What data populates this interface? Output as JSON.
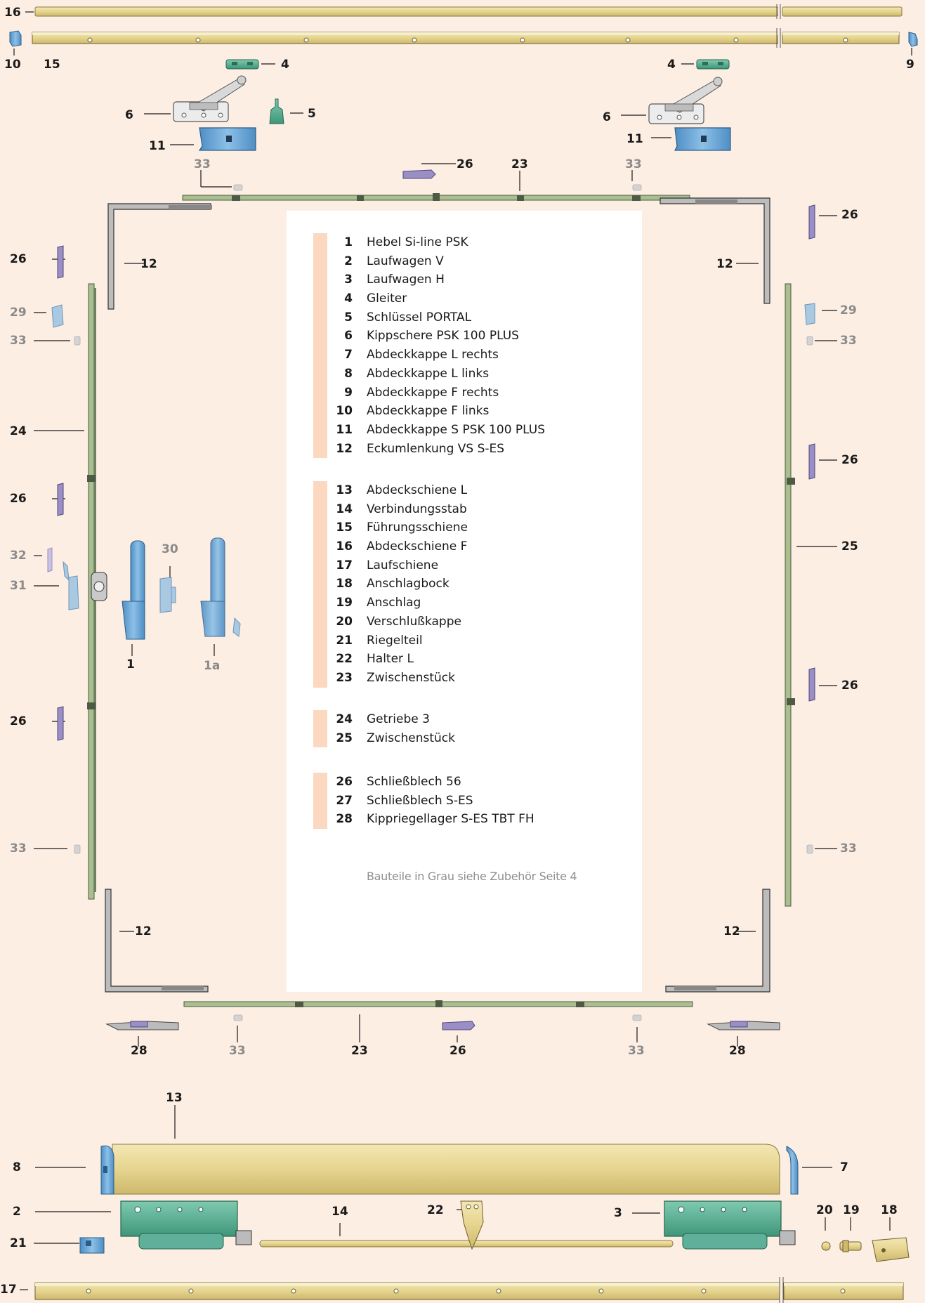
{
  "legend": {
    "groups": [
      {
        "items": [
          {
            "num": "1",
            "label": "Hebel Si-line PSK"
          },
          {
            "num": "2",
            "label": "Laufwagen V"
          },
          {
            "num": "3",
            "label": "Laufwagen H"
          },
          {
            "num": "4",
            "label": "Gleiter"
          },
          {
            "num": "5",
            "label": "Schlüssel PORTAL"
          },
          {
            "num": "6",
            "label": "Kippschere PSK 100 PLUS"
          },
          {
            "num": "7",
            "label": "Abdeckkappe L rechts"
          },
          {
            "num": "8",
            "label": "Abdeckkappe L links"
          },
          {
            "num": "9",
            "label": "Abdeckkappe F rechts"
          },
          {
            "num": "10",
            "label": "Abdeckkappe F links"
          },
          {
            "num": "11",
            "label": "Abdeckkappe S PSK 100 PLUS"
          },
          {
            "num": "12",
            "label": "Eckumlenkung VS S-ES"
          }
        ]
      },
      {
        "items": [
          {
            "num": "13",
            "label": "Abdeckschiene L"
          },
          {
            "num": "14",
            "label": "Verbindungsstab"
          },
          {
            "num": "15",
            "label": "Führungsschiene"
          },
          {
            "num": "16",
            "label": "Abdeckschiene F"
          },
          {
            "num": "17",
            "label": "Laufschiene"
          },
          {
            "num": "18",
            "label": "Anschlagbock"
          },
          {
            "num": "19",
            "label": "Anschlag"
          },
          {
            "num": "20",
            "label": "Verschlußkappe"
          },
          {
            "num": "21",
            "label": "Riegelteil"
          },
          {
            "num": "22",
            "label": "Halter L"
          }
        ]
      },
      {
        "items": [
          {
            "num": "23",
            "label": "Zwischenstück"
          }
        ]
      },
      {
        "items": [
          {
            "num": "24",
            "label": "Getriebe 3"
          },
          {
            "num": "25",
            "label": "Zwischenstück"
          }
        ]
      },
      {
        "items": [
          {
            "num": "26",
            "label": "Schließblech 56"
          },
          {
            "num": "27",
            "label": "Schließblech S-ES"
          },
          {
            "num": "28",
            "label": "Kippriegellager S-ES TBT FH"
          }
        ]
      }
    ],
    "footnote": "Bauteile in Grau siehe Zubehör Seite 4"
  },
  "callouts": [
    {
      "id": "c16",
      "text": "16",
      "grey": false
    },
    {
      "id": "c10",
      "text": "10",
      "grey": false
    },
    {
      "id": "c15",
      "text": "15",
      "grey": false
    },
    {
      "id": "c9",
      "text": "9",
      "grey": false
    },
    {
      "id": "c4a",
      "text": "4",
      "grey": false
    },
    {
      "id": "c4b",
      "text": "4",
      "grey": false
    },
    {
      "id": "c6a",
      "text": "6",
      "grey": false
    },
    {
      "id": "c5",
      "text": "5",
      "grey": false
    },
    {
      "id": "c6b",
      "text": "6",
      "grey": false
    },
    {
      "id": "c11a",
      "text": "11",
      "grey": false
    },
    {
      "id": "c11b",
      "text": "11",
      "grey": false
    },
    {
      "id": "c33t1",
      "text": "33",
      "grey": true
    },
    {
      "id": "c26t",
      "text": "26",
      "grey": false
    },
    {
      "id": "c23t",
      "text": "23",
      "grey": false
    },
    {
      "id": "c33t2",
      "text": "33",
      "grey": true
    },
    {
      "id": "c26r1",
      "text": "26",
      "grey": false
    },
    {
      "id": "c26l1",
      "text": "26",
      "grey": false
    },
    {
      "id": "c12tl",
      "text": "12",
      "grey": false
    },
    {
      "id": "c12tr",
      "text": "12",
      "grey": false
    },
    {
      "id": "c29l",
      "text": "29",
      "grey": true
    },
    {
      "id": "c29r",
      "text": "29",
      "grey": true
    },
    {
      "id": "c33l1",
      "text": "33",
      "grey": true
    },
    {
      "id": "c33r1",
      "text": "33",
      "grey": true
    },
    {
      "id": "c24",
      "text": "24",
      "grey": false
    },
    {
      "id": "c26r2",
      "text": "26",
      "grey": false
    },
    {
      "id": "c26l2",
      "text": "26",
      "grey": false
    },
    {
      "id": "c25",
      "text": "25",
      "grey": false
    },
    {
      "id": "c30",
      "text": "30",
      "grey": true
    },
    {
      "id": "c32",
      "text": "32",
      "grey": true
    },
    {
      "id": "c31",
      "text": "31",
      "grey": true
    },
    {
      "id": "c1",
      "text": "1",
      "grey": false
    },
    {
      "id": "c1a",
      "text": "1a",
      "grey": true
    },
    {
      "id": "c26r3",
      "text": "26",
      "grey": false
    },
    {
      "id": "c26l3",
      "text": "26",
      "grey": false
    },
    {
      "id": "c33l2",
      "text": "33",
      "grey": true
    },
    {
      "id": "c33r2",
      "text": "33",
      "grey": true
    },
    {
      "id": "c12bl",
      "text": "12",
      "grey": false
    },
    {
      "id": "c12br",
      "text": "12",
      "grey": false
    },
    {
      "id": "c28a",
      "text": "28",
      "grey": false
    },
    {
      "id": "c33b1",
      "text": "33",
      "grey": true
    },
    {
      "id": "c23b",
      "text": "23",
      "grey": false
    },
    {
      "id": "c26b",
      "text": "26",
      "grey": false
    },
    {
      "id": "c33b2",
      "text": "33",
      "grey": true
    },
    {
      "id": "c28b",
      "text": "28",
      "grey": false
    },
    {
      "id": "c13",
      "text": "13",
      "grey": false
    },
    {
      "id": "c8",
      "text": "8",
      "grey": false
    },
    {
      "id": "c7",
      "text": "7",
      "grey": false
    },
    {
      "id": "c2",
      "text": "2",
      "grey": false
    },
    {
      "id": "c14",
      "text": "14",
      "grey": false
    },
    {
      "id": "c22",
      "text": "22",
      "grey": false
    },
    {
      "id": "c3",
      "text": "3",
      "grey": false
    },
    {
      "id": "c20",
      "text": "20",
      "grey": false
    },
    {
      "id": "c19",
      "text": "19",
      "grey": false
    },
    {
      "id": "c18",
      "text": "18",
      "grey": false
    },
    {
      "id": "c21",
      "text": "21",
      "grey": false
    },
    {
      "id": "c17",
      "text": "17",
      "grey": false
    }
  ],
  "colors": {
    "background": "#fdeee4",
    "rail_tan": "#e9d99a",
    "rail_edge": "#8c7a3c",
    "frame_green": "#a9bf8e",
    "frame_dark": "#4d5a44",
    "part_blue": "#6fa8d6",
    "part_teal": "#63b69d",
    "part_violet": "#9a8fc4",
    "part_grey": "#c9c9c9",
    "legend_bar": "#fbd8bf"
  }
}
